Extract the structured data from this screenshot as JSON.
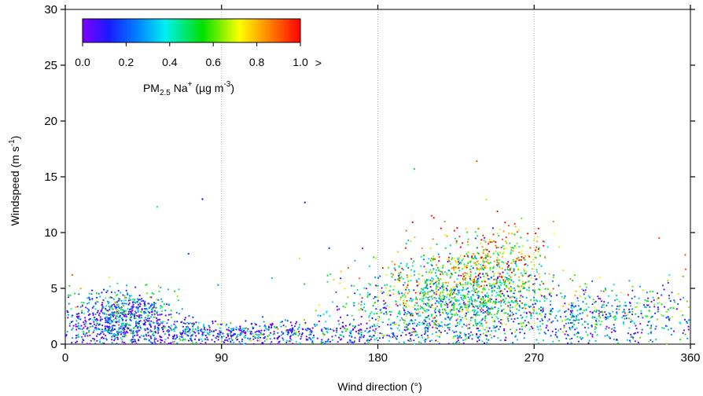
{
  "chart_data": {
    "type": "scatter",
    "xlabel": "Wind direction (°)",
    "ylabel_main": "Windspeed (m s",
    "ylabel_sup": "-1",
    "ylabel_close": ")",
    "xlim": [
      0,
      360
    ],
    "ylim": [
      0,
      30
    ],
    "xticks": [
      0,
      90,
      180,
      270,
      360
    ],
    "yticks": [
      0,
      5,
      10,
      15,
      20,
      25,
      30
    ],
    "xtick_labels": [
      "0",
      "90",
      "180",
      "270",
      "360"
    ],
    "ytick_labels": [
      "0",
      "5",
      "10",
      "15",
      "20",
      "25",
      "30"
    ],
    "vertical_dotted_gridlines_at": [
      90,
      180,
      270
    ],
    "colorbar": {
      "colormap": "rainbow (violet-blue-cyan-green-yellow-red)",
      "range": [
        0.0,
        1.0
      ],
      "tick_labels": [
        "0.0",
        "0.2",
        "0.4",
        "0.6",
        "0.8",
        "1.0"
      ],
      "overflow_marker": ">",
      "title_prefix": "PM",
      "title_sub": "2.5",
      "title_mid": " Na",
      "title_sup_plus": "+",
      "title_units_open": " (µg m",
      "title_units_sup": "-3",
      "title_units_close": ")"
    },
    "point_clusters": [
      {
        "x_center": 32,
        "x_spread": 16,
        "y_center": 2.4,
        "y_spread": 1.2,
        "count": 750,
        "color_mean": 0.22
      },
      {
        "x_center": 100,
        "x_spread": 60,
        "y_center": 1.0,
        "y_spread": 0.6,
        "count": 850,
        "color_mean": 0.18
      },
      {
        "x_center": 215,
        "x_spread": 28,
        "y_center": 3.8,
        "y_spread": 2.0,
        "count": 1100,
        "color_mean": 0.42
      },
      {
        "x_center": 245,
        "x_spread": 18,
        "y_center": 6.2,
        "y_spread": 2.2,
        "count": 650,
        "color_mean": 0.62
      },
      {
        "x_center": 310,
        "x_spread": 38,
        "y_center": 2.6,
        "y_spread": 1.5,
        "count": 650,
        "color_mean": 0.3
      }
    ],
    "notable_points": [
      {
        "x": 237,
        "y": 16.4,
        "value": 0.9
      },
      {
        "x": 201,
        "y": 15.7,
        "value": 0.5
      },
      {
        "x": 79,
        "y": 13.0,
        "value": 0.1
      },
      {
        "x": 138,
        "y": 12.7,
        "value": 0.05
      },
      {
        "x": 53,
        "y": 12.3,
        "value": 0.4
      },
      {
        "x": 342,
        "y": 9.5,
        "value": 0.9
      },
      {
        "x": 357,
        "y": 8.0,
        "value": 0.9
      },
      {
        "x": 152,
        "y": 8.6,
        "value": 0.2
      },
      {
        "x": 71,
        "y": 8.1,
        "value": 0.2
      },
      {
        "x": 88,
        "y": 5.3,
        "value": 0.3
      },
      {
        "x": 4,
        "y": 6.2,
        "value": 0.9
      }
    ]
  }
}
